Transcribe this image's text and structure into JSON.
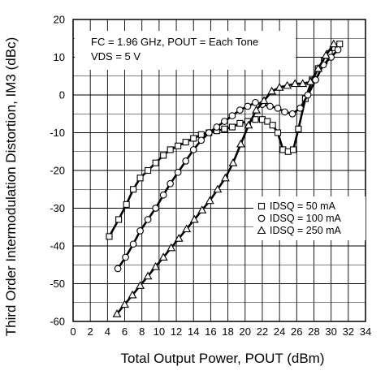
{
  "chart_data": {
    "type": "line",
    "xlabel": "Total Output Power, POUT (dBm)",
    "ylabel": "Third Order Intermodulation Distortion, IM3 (dBc)",
    "xlim": [
      0,
      34
    ],
    "ylim": [
      -60,
      20
    ],
    "xticks": [
      "0",
      "2",
      "4",
      "6",
      "8",
      "10",
      "12",
      "14",
      "16",
      "18",
      "20",
      "22",
      "24",
      "26",
      "28",
      "30",
      "32",
      "34"
    ],
    "yticks": [
      "20",
      "10",
      "0",
      "-10",
      "-20",
      "-30",
      "-40",
      "-50",
      "-60"
    ],
    "grid": true,
    "annotations": [
      "FC = 1.96 GHz, POUT = Each Tone",
      "VDS = 5 V"
    ],
    "legend_position": "center-right",
    "series": [
      {
        "name": "IDSQ = 50 mA",
        "marker": "square",
        "x": [
          4.2,
          5.3,
          6.2,
          7,
          7.8,
          8.7,
          9.6,
          10.5,
          11.3,
          12.2,
          13.1,
          14,
          14.9,
          15.8,
          16.7,
          17.6,
          18.5,
          19.4,
          20.3,
          21.2,
          22,
          22.6,
          23.2,
          23.8,
          24.4,
          25,
          25.6,
          26.2,
          27,
          27.8,
          28.5,
          29.2,
          29.8,
          30.4,
          31
        ],
        "y": [
          -37.5,
          -33,
          -29,
          -25,
          -22,
          -20,
          -18,
          -16,
          -14.5,
          -13.5,
          -12.5,
          -11.5,
          -10.5,
          -10,
          -9.5,
          -9,
          -8.5,
          -7.5,
          -7,
          -6.5,
          -6.5,
          -7,
          -8,
          -10,
          -14.5,
          -15,
          -14.5,
          -9,
          -1,
          4,
          7,
          9,
          11,
          12.5,
          13.5
        ]
      },
      {
        "name": "IDSQ = 100 mA",
        "marker": "circle",
        "x": [
          5.2,
          6.1,
          7,
          7.8,
          8.7,
          9.6,
          10.5,
          11.3,
          12.2,
          13.1,
          14,
          14.9,
          15.8,
          16.7,
          17.6,
          18.5,
          19.4,
          20.3,
          21.2,
          22,
          22.9,
          23.8,
          24.6,
          25.5,
          26.4,
          27.3,
          28.2,
          29.1,
          30,
          30.8
        ],
        "y": [
          -46,
          -43,
          -39.5,
          -36,
          -33,
          -30,
          -26.5,
          -23.5,
          -20.5,
          -17.5,
          -14.5,
          -12,
          -10,
          -8.5,
          -7,
          -5.5,
          -4,
          -3,
          -2,
          -2.5,
          -3,
          -3.5,
          -4.5,
          -5,
          -3.5,
          0,
          4,
          8,
          10,
          12
        ]
      },
      {
        "name": "IDSQ = 250 mA",
        "marker": "triangle",
        "x": [
          5.1,
          6,
          6.9,
          7.8,
          8.7,
          9.6,
          10.5,
          11.4,
          12.3,
          13.2,
          14.1,
          15,
          15.9,
          16.8,
          17.7,
          18.6,
          19.5,
          20.4,
          21.3,
          22.2,
          23.1,
          24,
          24.9,
          25.8,
          26.7,
          27.6,
          28.5,
          29.4,
          30.3
        ],
        "y": [
          -58,
          -55.5,
          -53,
          -50.5,
          -48,
          -45.5,
          -43,
          -40.5,
          -38,
          -35.5,
          -33,
          -30.5,
          -28,
          -25,
          -22,
          -18,
          -13,
          -8,
          -4,
          -1.5,
          1,
          2,
          2.5,
          3,
          3,
          3.5,
          7,
          10.5,
          13.5
        ]
      }
    ]
  }
}
